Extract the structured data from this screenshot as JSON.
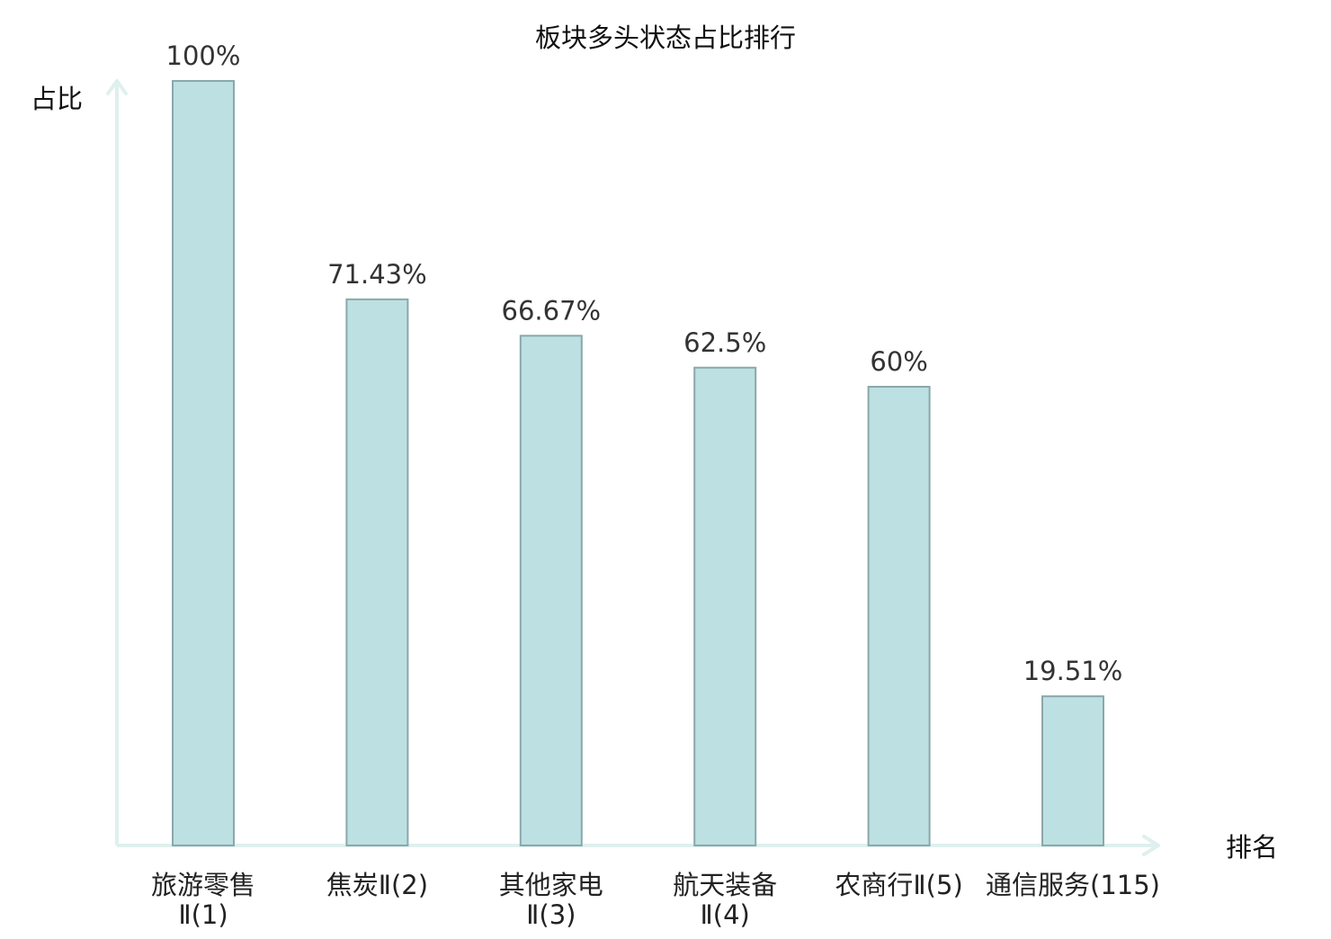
{
  "chart_data": {
    "type": "bar",
    "title": "板块多头状态占比排行",
    "ylabel": "占比",
    "xlabel": "排名",
    "ylim": [
      0,
      100
    ],
    "unit": "%",
    "categories": [
      {
        "label": "旅游零售Ⅱ(1)",
        "lines": [
          "旅游零售",
          "Ⅱ(1)"
        ],
        "highlight": false
      },
      {
        "label": "焦炭Ⅱ(2)",
        "lines": [
          "焦炭Ⅱ(2)"
        ],
        "highlight": false
      },
      {
        "label": "其他家电Ⅱ(3)",
        "lines": [
          "其他家电",
          "Ⅱ(3)"
        ],
        "highlight": false
      },
      {
        "label": "航天装备Ⅱ(4)",
        "lines": [
          "航天装备",
          "Ⅱ(4)"
        ],
        "highlight": false
      },
      {
        "label": "农商行Ⅱ(5)",
        "lines": [
          "农商行Ⅱ(5)"
        ],
        "highlight": false
      },
      {
        "label": "通信服务(115)",
        "lines": [
          "通信服务(115)"
        ],
        "highlight": true
      }
    ],
    "values": [
      100,
      71.43,
      66.67,
      62.5,
      60,
      19.51
    ],
    "value_labels": [
      "100%",
      "71.43%",
      "66.67%",
      "62.5%",
      "60%",
      "19.51%"
    ],
    "grid": false,
    "legend": "none"
  },
  "colors": {
    "bar_fill": "#bde0e2",
    "bar_stroke": "#8aa8ab",
    "axis": "#dff0ee",
    "highlight_text": "#e02020",
    "text": "#222222"
  }
}
